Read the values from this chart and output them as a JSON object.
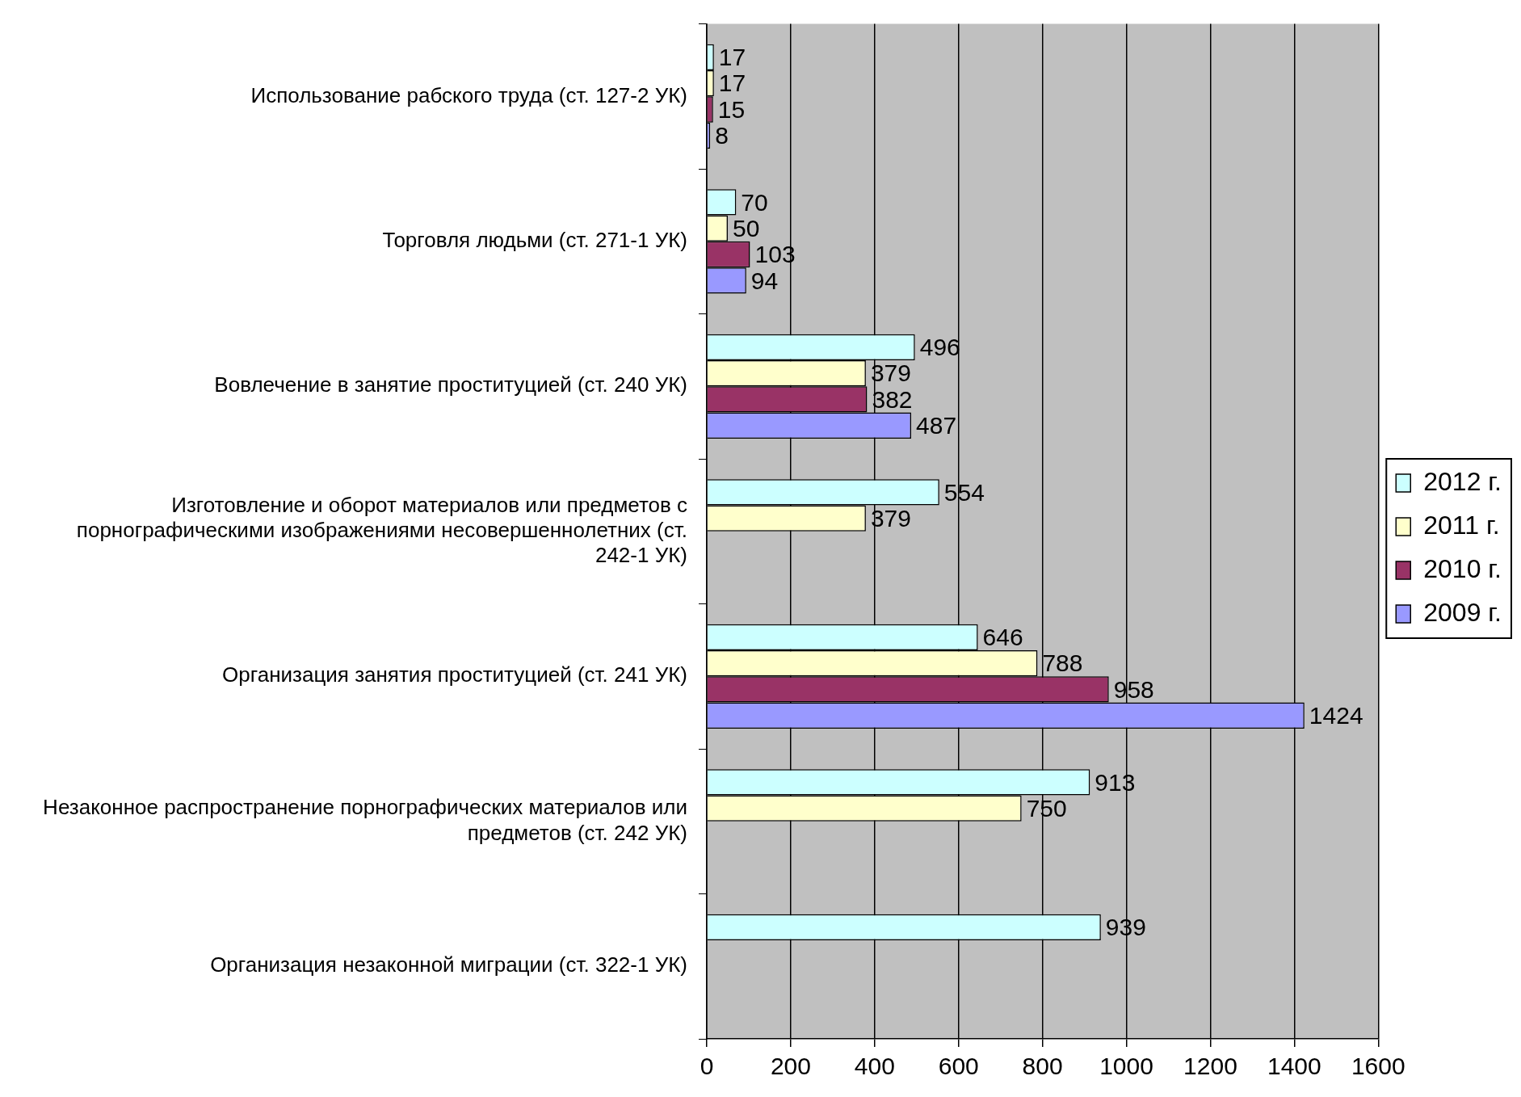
{
  "chart_data": {
    "type": "bar",
    "orientation": "horizontal",
    "categories": [
      "Использование рабского труда (ст. 127-2 УК)",
      "Торговля людьми (ст. 271-1 УК)",
      "Вовлечение в занятие проституцией (ст. 240 УК)",
      "Изготовление и оборот материалов или предметов с порнографическими изображениями несовершеннолетних (ст. 242-1 УК)",
      "Организация занятия проституцией (ст. 241 УК)",
      "Незаконное распространение порнографических материалов или предметов (ст. 242 УК)",
      "Организация незаконной миграции (ст. 322-1 УК)"
    ],
    "series": [
      {
        "name": "2012 г.",
        "color": "#ccffff",
        "values": [
          17,
          70,
          496,
          554,
          646,
          913,
          939
        ]
      },
      {
        "name": "2011 г.",
        "color": "#ffffcc",
        "values": [
          17,
          50,
          379,
          379,
          788,
          750,
          null
        ]
      },
      {
        "name": "2010 г.",
        "color": "#993366",
        "values": [
          15,
          103,
          382,
          null,
          958,
          null,
          null
        ]
      },
      {
        "name": "2009 г.",
        "color": "#9999ff",
        "values": [
          8,
          94,
          487,
          null,
          1424,
          null,
          null
        ]
      }
    ],
    "xlim": [
      0,
      1600
    ],
    "xticks": [
      0,
      200,
      400,
      600,
      800,
      1000,
      1200,
      1400,
      1600
    ],
    "grid": "x",
    "legend": "right",
    "data_labels": true
  }
}
